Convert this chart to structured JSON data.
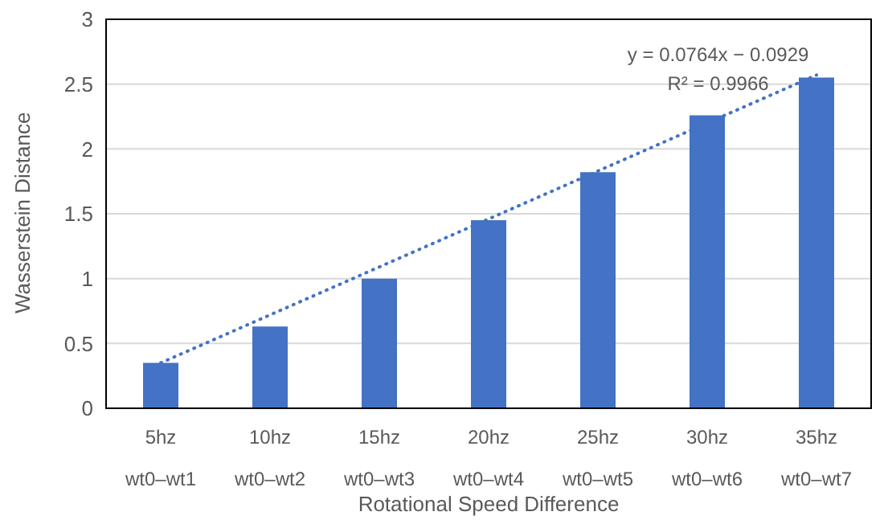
{
  "chart_data": {
    "type": "bar",
    "xlabel": "Rotational Speed Difference",
    "ylabel": "Wasserstein Distance",
    "categories": [
      "5hz\nwt0–wt1",
      "10hz\nwt0–wt2",
      "15hz\nwt0–wt3",
      "20hz\nwt0–wt4",
      "25hz\nwt0–wt5",
      "30hz\nwt0–wt6",
      "35hz\nwt0–wt7"
    ],
    "series": [
      {
        "color": "#4472c4",
        "values": [
          0.35,
          0.63,
          1.0,
          1.45,
          1.82,
          2.26,
          2.55
        ]
      },
      {
        "type": "line",
        "color": "#4472c4",
        "line_style": "dotted",
        "marker": "none",
        "values": [
          0.35,
          0.72,
          1.09,
          1.46,
          1.83,
          2.2,
          2.57
        ]
      }
    ],
    "ylim": [
      0,
      3
    ],
    "yticks": [
      0,
      0.5,
      1,
      1.5,
      2,
      2.5,
      3
    ],
    "grid": "y",
    "legend": false,
    "annotations": [
      "y = 0.0764x − 0.0929",
      "R² = 0.9966"
    ]
  }
}
